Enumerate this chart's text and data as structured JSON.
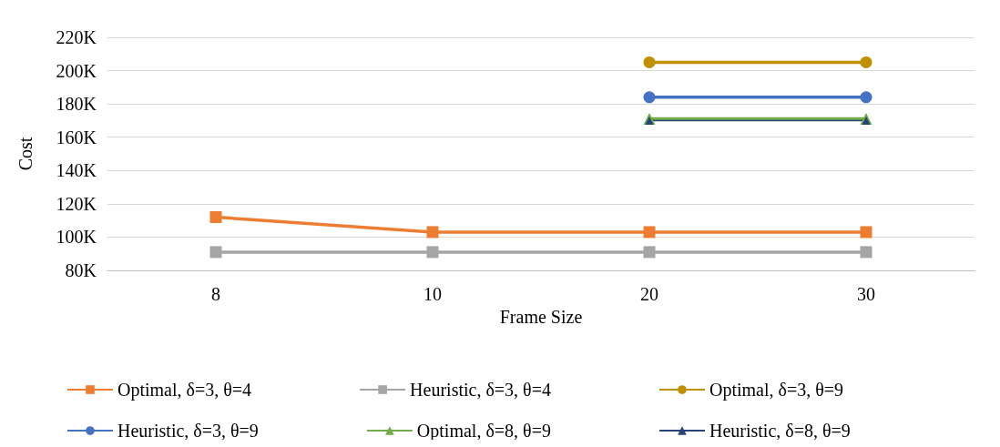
{
  "chart_data": {
    "type": "line",
    "xlabel": "Frame Size",
    "ylabel": "Cost",
    "categories": [
      "8",
      "10",
      "20",
      "30"
    ],
    "ylim": [
      80000,
      220000
    ],
    "yticks": [
      {
        "value": 80000,
        "label": "80K"
      },
      {
        "value": 100000,
        "label": "100K"
      },
      {
        "value": 120000,
        "label": "120K"
      },
      {
        "value": 140000,
        "label": "140K"
      },
      {
        "value": 160000,
        "label": "160K"
      },
      {
        "value": 180000,
        "label": "180K"
      },
      {
        "value": 200000,
        "label": "200K"
      },
      {
        "value": 220000,
        "label": "220K"
      }
    ],
    "grid": "y",
    "legend": "bottom",
    "series": [
      {
        "name": "Optimal, δ=3, θ=4",
        "color": "#ed7d31",
        "marker": "square",
        "values": [
          112000,
          103000,
          103000,
          103000
        ]
      },
      {
        "name": "Heuristic, δ=3, θ=4",
        "color": "#a5a5a5",
        "marker": "square",
        "values": [
          91000,
          91000,
          91000,
          91000
        ]
      },
      {
        "name": "Optimal, δ=3, θ=9",
        "color": "#c09000",
        "marker": "circle",
        "values": [
          null,
          null,
          205000,
          205000
        ]
      },
      {
        "name": "Heuristic, δ=3, θ=9",
        "color": "#4472c4",
        "marker": "circle",
        "values": [
          null,
          null,
          184000,
          184000
        ]
      },
      {
        "name": "Optimal, δ=8, θ=9",
        "color": "#70ad47",
        "marker": "triangle",
        "values": [
          null,
          null,
          171000,
          171000
        ]
      },
      {
        "name": "Heuristic, δ=8, θ=9",
        "color": "#264478",
        "marker": "triangle",
        "values": [
          null,
          null,
          170000,
          170000
        ]
      }
    ]
  }
}
